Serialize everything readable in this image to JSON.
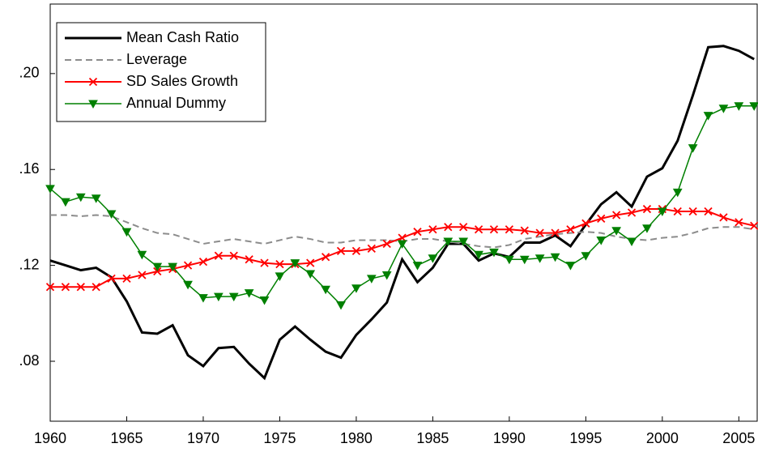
{
  "chart_data": {
    "type": "line",
    "x": [
      1960,
      1961,
      1962,
      1963,
      1964,
      1965,
      1966,
      1967,
      1968,
      1969,
      1970,
      1971,
      1972,
      1973,
      1974,
      1975,
      1976,
      1977,
      1978,
      1979,
      1980,
      1981,
      1982,
      1983,
      1984,
      1985,
      1986,
      1987,
      1988,
      1989,
      1990,
      1991,
      1992,
      1993,
      1994,
      1995,
      1996,
      1997,
      1998,
      1999,
      2000,
      2001,
      2002,
      2003,
      2004,
      2005,
      2006
    ],
    "xlim": [
      1960,
      2006.2
    ],
    "xticks": [
      1960,
      1965,
      1970,
      1975,
      1980,
      1985,
      1990,
      1995,
      2000,
      2005
    ],
    "ylim": [
      0.055,
      0.229
    ],
    "yticks": [
      {
        "value": 0.08,
        "label": ".08"
      },
      {
        "value": 0.12,
        "label": ".12"
      },
      {
        "value": 0.16,
        "label": ".16"
      },
      {
        "value": 0.2,
        "label": ".20"
      }
    ],
    "legend": "upper left",
    "series": [
      {
        "name": "Mean Cash Ratio",
        "color": "#000000",
        "width": 3,
        "dashed": false,
        "marker": "none",
        "values": [
          0.122,
          0.12,
          0.118,
          0.119,
          0.115,
          0.105,
          0.092,
          0.0915,
          0.095,
          0.0825,
          0.078,
          0.0855,
          0.086,
          0.079,
          0.073,
          0.089,
          0.0945,
          0.089,
          0.084,
          0.0815,
          0.091,
          0.0975,
          0.1045,
          0.1225,
          0.113,
          0.119,
          0.129,
          0.129,
          0.122,
          0.125,
          0.1235,
          0.1295,
          0.1295,
          0.1325,
          0.128,
          0.137,
          0.1455,
          0.1505,
          0.1445,
          0.157,
          0.1605,
          0.172,
          0.191,
          0.211,
          0.2115,
          0.2095,
          0.206
        ]
      },
      {
        "name": "Leverage",
        "color": "#8c8c8c",
        "width": 2,
        "dashed": true,
        "marker": "none",
        "values": [
          0.141,
          0.141,
          0.1405,
          0.141,
          0.1405,
          0.138,
          0.1355,
          0.1335,
          0.133,
          0.131,
          0.129,
          0.13,
          0.131,
          0.13,
          0.129,
          0.1305,
          0.132,
          0.131,
          0.1295,
          0.1295,
          0.1305,
          0.1305,
          0.1305,
          0.13,
          0.131,
          0.131,
          0.13,
          0.129,
          0.128,
          0.1275,
          0.1285,
          0.131,
          0.132,
          0.133,
          0.1335,
          0.134,
          0.1335,
          0.132,
          0.131,
          0.1305,
          0.1315,
          0.132,
          0.1335,
          0.1355,
          0.136,
          0.136,
          0.135
        ]
      },
      {
        "name": "SD Sales Growth",
        "color": "#ff0000",
        "width": 2,
        "dashed": false,
        "marker": "x",
        "values": [
          0.111,
          0.111,
          0.111,
          0.111,
          0.1145,
          0.1145,
          0.116,
          0.1175,
          0.1185,
          0.12,
          0.1215,
          0.124,
          0.124,
          0.1225,
          0.121,
          0.1205,
          0.1205,
          0.121,
          0.1235,
          0.126,
          0.126,
          0.127,
          0.129,
          0.1315,
          0.134,
          0.135,
          0.136,
          0.136,
          0.135,
          0.135,
          0.135,
          0.1345,
          0.1335,
          0.1335,
          0.135,
          0.1375,
          0.1395,
          0.141,
          0.142,
          0.1435,
          0.1435,
          0.1425,
          0.1425,
          0.1425,
          0.14,
          0.138,
          0.1365
        ]
      },
      {
        "name": "Annual Dummy",
        "color": "#008000",
        "width": 1.5,
        "dashed": false,
        "marker": "triangle-down",
        "values": [
          0.152,
          0.1465,
          0.1485,
          0.148,
          0.1415,
          0.134,
          0.1245,
          0.1195,
          0.1195,
          0.112,
          0.1065,
          0.107,
          0.107,
          0.1085,
          0.1055,
          0.1155,
          0.121,
          0.1165,
          0.11,
          0.1035,
          0.1105,
          0.1145,
          0.116,
          0.129,
          0.12,
          0.123,
          0.13,
          0.13,
          0.1245,
          0.1255,
          0.1225,
          0.1225,
          0.123,
          0.1235,
          0.12,
          0.124,
          0.1305,
          0.1345,
          0.13,
          0.1355,
          0.1425,
          0.1505,
          0.169,
          0.1825,
          0.1855,
          0.1865,
          0.1865
        ]
      }
    ]
  }
}
